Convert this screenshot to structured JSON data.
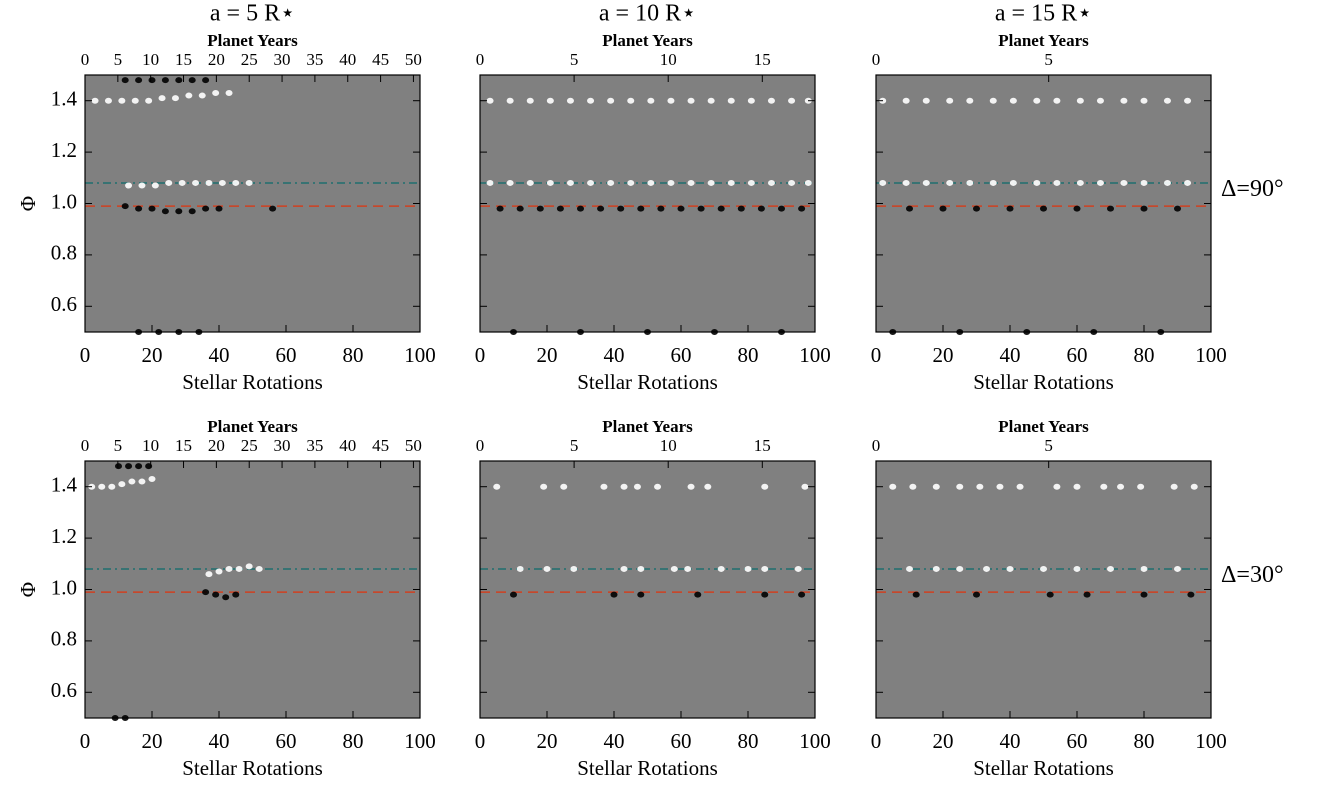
{
  "chart_data": [
    {
      "type": "scatter",
      "title": "a = 5 R⋆",
      "ylabel": "Φ",
      "show_ytick_labels": true,
      "xlabel": "Stellar Rotations",
      "xlim": [
        0,
        100
      ],
      "xticks": [
        0,
        20,
        40,
        60,
        80,
        100
      ],
      "ylim": [
        0.5,
        1.5
      ],
      "yticks": [
        0.6,
        0.8,
        {
          "value": 1,
          "label": "1.0"
        },
        1.2,
        1.4
      ],
      "top_axis": {
        "label": "Planet Years",
        "lim": [
          0,
          51
        ],
        "ticks": [
          0,
          5,
          10,
          15,
          20,
          25,
          30,
          35,
          40,
          45,
          50
        ]
      },
      "hlines": [
        {
          "value": 1.08,
          "color": "#1f6f6f",
          "dash": "dashdot"
        },
        {
          "value": 0.99,
          "color": "#d04020",
          "dash": "dashed"
        }
      ],
      "series": [
        {
          "color": "#ffffff",
          "x": [
            3,
            7,
            11,
            15,
            19,
            23,
            27,
            31,
            35,
            39,
            43,
            13,
            17,
            21,
            25,
            29,
            33,
            37,
            41,
            45,
            49
          ],
          "values": [
            1.4,
            1.4,
            1.4,
            1.4,
            1.4,
            1.41,
            1.41,
            1.42,
            1.42,
            1.43,
            1.43,
            1.07,
            1.07,
            1.07,
            1.08,
            1.08,
            1.08,
            1.08,
            1.08,
            1.08,
            1.08
          ]
        },
        {
          "color": "#000000",
          "x": [
            12,
            16,
            20,
            24,
            28,
            32,
            36,
            40,
            56,
            12,
            16,
            20,
            24,
            28,
            32,
            36,
            16,
            22,
            28,
            34
          ],
          "values": [
            0.99,
            0.98,
            0.98,
            0.97,
            0.97,
            0.97,
            0.98,
            0.98,
            0.98,
            1.48,
            1.48,
            1.48,
            1.48,
            1.48,
            1.48,
            1.48,
            0.5,
            0.5,
            0.5,
            0.5
          ]
        }
      ]
    },
    {
      "type": "scatter",
      "title": "a = 10 R⋆",
      "show_ytick_labels": false,
      "xlabel": "Stellar Rotations",
      "xlim": [
        0,
        100
      ],
      "xticks": [
        0,
        20,
        40,
        60,
        80,
        100
      ],
      "ylim": [
        0.5,
        1.5
      ],
      "yticks": [
        0.6,
        0.8,
        {
          "value": 1,
          "label": "1.0"
        },
        1.2,
        1.4
      ],
      "top_axis": {
        "label": "Planet Years",
        "lim": [
          0,
          17.8
        ],
        "ticks": [
          0,
          5,
          10,
          15
        ]
      },
      "hlines": [
        {
          "value": 1.08,
          "color": "#1f6f6f",
          "dash": "dashdot"
        },
        {
          "value": 0.99,
          "color": "#d04020",
          "dash": "dashed"
        }
      ],
      "series": [
        {
          "color": "#ffffff",
          "x": [
            3,
            9,
            15,
            21,
            27,
            33,
            39,
            45,
            51,
            57,
            63,
            69,
            75,
            81,
            87,
            93,
            98,
            3,
            9,
            15,
            21,
            27,
            33,
            39,
            45,
            51,
            57,
            63,
            69,
            75,
            81,
            87,
            93,
            98
          ],
          "values": [
            1.4,
            1.4,
            1.4,
            1.4,
            1.4,
            1.4,
            1.4,
            1.4,
            1.4,
            1.4,
            1.4,
            1.4,
            1.4,
            1.4,
            1.4,
            1.4,
            1.4,
            1.08,
            1.08,
            1.08,
            1.08,
            1.08,
            1.08,
            1.08,
            1.08,
            1.08,
            1.08,
            1.08,
            1.08,
            1.08,
            1.08,
            1.08,
            1.08,
            1.08
          ]
        },
        {
          "color": "#000000",
          "x": [
            6,
            12,
            18,
            24,
            30,
            36,
            42,
            48,
            54,
            60,
            66,
            72,
            78,
            84,
            90,
            96,
            10,
            30,
            50,
            70,
            90
          ],
          "values": [
            0.98,
            0.98,
            0.98,
            0.98,
            0.98,
            0.98,
            0.98,
            0.98,
            0.98,
            0.98,
            0.98,
            0.98,
            0.98,
            0.98,
            0.98,
            0.98,
            0.5,
            0.5,
            0.5,
            0.5,
            0.5
          ]
        }
      ]
    },
    {
      "type": "scatter",
      "title": "a = 15 R⋆",
      "annotation": "Δ=90°",
      "show_ytick_labels": false,
      "xlabel": "Stellar Rotations",
      "xlim": [
        0,
        100
      ],
      "xticks": [
        0,
        20,
        40,
        60,
        80,
        100
      ],
      "ylim": [
        0.5,
        1.5
      ],
      "yticks": [
        0.6,
        0.8,
        {
          "value": 1,
          "label": "1.0"
        },
        1.2,
        1.4
      ],
      "top_axis": {
        "label": "Planet Years",
        "lim": [
          0,
          9.7
        ],
        "ticks": [
          0,
          5
        ]
      },
      "hlines": [
        {
          "value": 1.08,
          "color": "#1f6f6f",
          "dash": "dashdot"
        },
        {
          "value": 0.99,
          "color": "#d04020",
          "dash": "dashed"
        }
      ],
      "series": [
        {
          "color": "#ffffff",
          "x": [
            2,
            9,
            15,
            22,
            28,
            35,
            41,
            48,
            54,
            61,
            67,
            74,
            80,
            87,
            93,
            2,
            9,
            15,
            22,
            28,
            35,
            41,
            48,
            54,
            61,
            67,
            74,
            80,
            87,
            93
          ],
          "values": [
            1.4,
            1.4,
            1.4,
            1.4,
            1.4,
            1.4,
            1.4,
            1.4,
            1.4,
            1.4,
            1.4,
            1.4,
            1.4,
            1.4,
            1.4,
            1.08,
            1.08,
            1.08,
            1.08,
            1.08,
            1.08,
            1.08,
            1.08,
            1.08,
            1.08,
            1.08,
            1.08,
            1.08,
            1.08,
            1.08
          ]
        },
        {
          "color": "#000000",
          "x": [
            10,
            20,
            30,
            40,
            50,
            60,
            70,
            80,
            90,
            5,
            25,
            45,
            65,
            85
          ],
          "values": [
            0.98,
            0.98,
            0.98,
            0.98,
            0.98,
            0.98,
            0.98,
            0.98,
            0.98,
            0.5,
            0.5,
            0.5,
            0.5,
            0.5
          ]
        }
      ]
    },
    {
      "type": "scatter",
      "ylabel": "Φ",
      "show_ytick_labels": true,
      "xlabel": "Stellar Rotations",
      "xlim": [
        0,
        100
      ],
      "xticks": [
        0,
        20,
        40,
        60,
        80,
        100
      ],
      "ylim": [
        0.5,
        1.5
      ],
      "yticks": [
        0.6,
        0.8,
        {
          "value": 1,
          "label": "1.0"
        },
        1.2,
        1.4
      ],
      "top_axis": {
        "label": "Planet Years",
        "lim": [
          0,
          51
        ],
        "ticks": [
          0,
          5,
          10,
          15,
          20,
          25,
          30,
          35,
          40,
          45,
          50
        ]
      },
      "hlines": [
        {
          "value": 1.08,
          "color": "#1f6f6f",
          "dash": "dashdot"
        },
        {
          "value": 0.99,
          "color": "#d04020",
          "dash": "dashed"
        }
      ],
      "series": [
        {
          "color": "#ffffff",
          "x": [
            2,
            5,
            8,
            11,
            14,
            17,
            20,
            37,
            40,
            43,
            46,
            49,
            52
          ],
          "values": [
            1.4,
            1.4,
            1.4,
            1.41,
            1.42,
            1.42,
            1.43,
            1.06,
            1.07,
            1.08,
            1.08,
            1.09,
            1.08
          ]
        },
        {
          "color": "#000000",
          "x": [
            36,
            39,
            42,
            45,
            10,
            13,
            16,
            19,
            9,
            12
          ],
          "values": [
            0.99,
            0.98,
            0.97,
            0.98,
            1.48,
            1.48,
            1.48,
            1.48,
            0.5,
            0.5
          ]
        }
      ]
    },
    {
      "type": "scatter",
      "show_ytick_labels": false,
      "xlabel": "Stellar Rotations",
      "xlim": [
        0,
        100
      ],
      "xticks": [
        0,
        20,
        40,
        60,
        80,
        100
      ],
      "ylim": [
        0.5,
        1.5
      ],
      "yticks": [
        0.6,
        0.8,
        {
          "value": 1,
          "label": "1.0"
        },
        1.2,
        1.4
      ],
      "top_axis": {
        "label": "Planet Years",
        "lim": [
          0,
          17.8
        ],
        "ticks": [
          0,
          5,
          10,
          15
        ]
      },
      "hlines": [
        {
          "value": 1.08,
          "color": "#1f6f6f",
          "dash": "dashdot"
        },
        {
          "value": 0.99,
          "color": "#d04020",
          "dash": "dashed"
        }
      ],
      "series": [
        {
          "color": "#ffffff",
          "x": [
            5,
            19,
            25,
            37,
            43,
            47,
            53,
            63,
            68,
            85,
            97,
            12,
            20,
            28,
            43,
            48,
            58,
            62,
            72,
            80,
            85,
            95
          ],
          "values": [
            1.4,
            1.4,
            1.4,
            1.4,
            1.4,
            1.4,
            1.4,
            1.4,
            1.4,
            1.4,
            1.4,
            1.08,
            1.08,
            1.08,
            1.08,
            1.08,
            1.08,
            1.08,
            1.08,
            1.08,
            1.08,
            1.08
          ]
        },
        {
          "color": "#000000",
          "x": [
            10,
            40,
            48,
            65,
            85,
            96
          ],
          "values": [
            0.98,
            0.98,
            0.98,
            0.98,
            0.98,
            0.98
          ]
        }
      ]
    },
    {
      "type": "scatter",
      "annotation": "Δ=30°",
      "show_ytick_labels": false,
      "xlabel": "Stellar Rotations",
      "xlim": [
        0,
        100
      ],
      "xticks": [
        0,
        20,
        40,
        60,
        80,
        100
      ],
      "ylim": [
        0.5,
        1.5
      ],
      "yticks": [
        0.6,
        0.8,
        {
          "value": 1,
          "label": "1.0"
        },
        1.2,
        1.4
      ],
      "top_axis": {
        "label": "Planet Years",
        "lim": [
          0,
          9.7
        ],
        "ticks": [
          0,
          5
        ]
      },
      "hlines": [
        {
          "value": 1.08,
          "color": "#1f6f6f",
          "dash": "dashdot"
        },
        {
          "value": 0.99,
          "color": "#d04020",
          "dash": "dashed"
        }
      ],
      "series": [
        {
          "color": "#ffffff",
          "x": [
            5,
            11,
            18,
            25,
            31,
            37,
            43,
            54,
            60,
            68,
            73,
            79,
            89,
            95,
            10,
            18,
            25,
            33,
            40,
            50,
            60,
            70,
            80,
            90
          ],
          "values": [
            1.4,
            1.4,
            1.4,
            1.4,
            1.4,
            1.4,
            1.4,
            1.4,
            1.4,
            1.4,
            1.4,
            1.4,
            1.4,
            1.4,
            1.08,
            1.08,
            1.08,
            1.08,
            1.08,
            1.08,
            1.08,
            1.08,
            1.08,
            1.08
          ]
        },
        {
          "color": "#000000",
          "x": [
            12,
            30,
            52,
            63,
            80,
            94
          ],
          "values": [
            0.98,
            0.98,
            0.98,
            0.98,
            0.98,
            0.98
          ]
        }
      ]
    }
  ]
}
